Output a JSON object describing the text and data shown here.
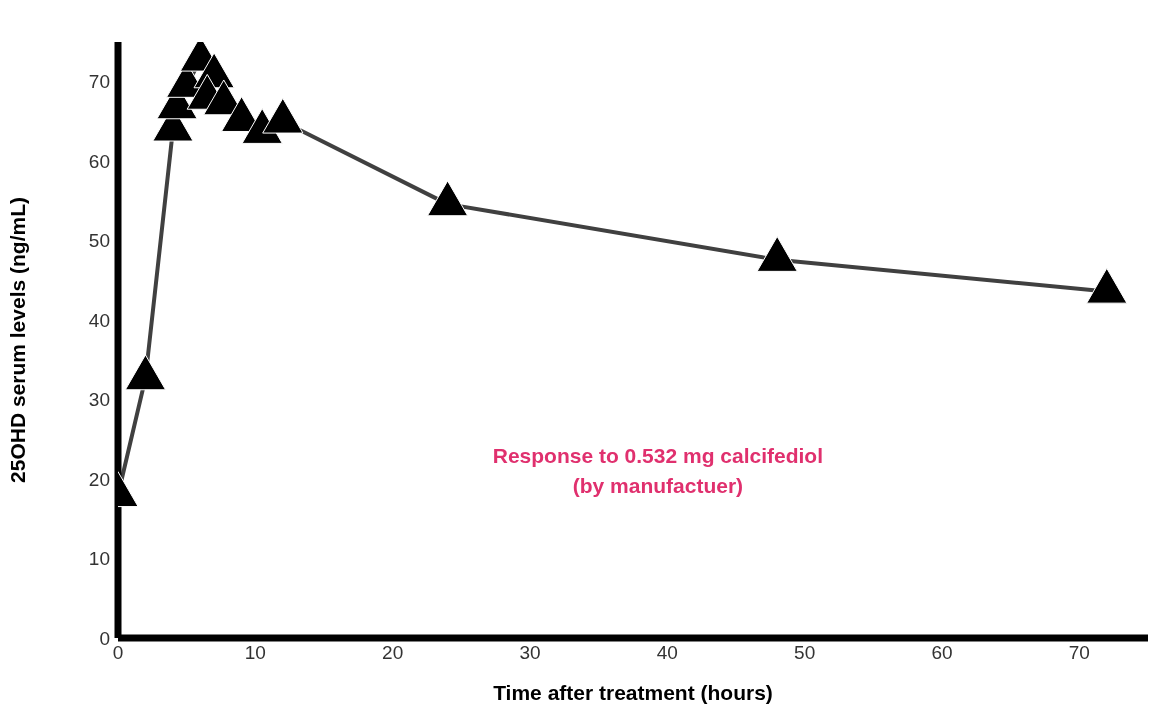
{
  "chart_data": {
    "type": "line",
    "xlabel": "Time after treatment (hours)",
    "ylabel": "25OHD serum levels (ng/mL)",
    "x": [
      0,
      2,
      4,
      4.3,
      5,
      6,
      7,
      6.5,
      7.7,
      9,
      10.5,
      12,
      24,
      48,
      72
    ],
    "series": [
      {
        "color": "#404040",
        "values": [
          18,
          32.7,
          64,
          66.8,
          69.5,
          72.8,
          70.7,
          68,
          67.3,
          65.2,
          63.7,
          65,
          54.6,
          47.6,
          43.6
        ]
      }
    ],
    "xlim": [
      0,
      75
    ],
    "xticks": [
      0,
      10,
      20,
      30,
      40,
      50,
      60,
      70
    ],
    "ylim": [
      0,
      75
    ],
    "yticks": [
      0,
      10,
      20,
      30,
      40,
      50,
      60,
      70
    ],
    "grid": false,
    "legend": false,
    "marker": "triangle",
    "line_style": "solid",
    "annotations": [
      "Response to 0.532 mg calcifediol\n(by manufactuer)"
    ]
  }
}
